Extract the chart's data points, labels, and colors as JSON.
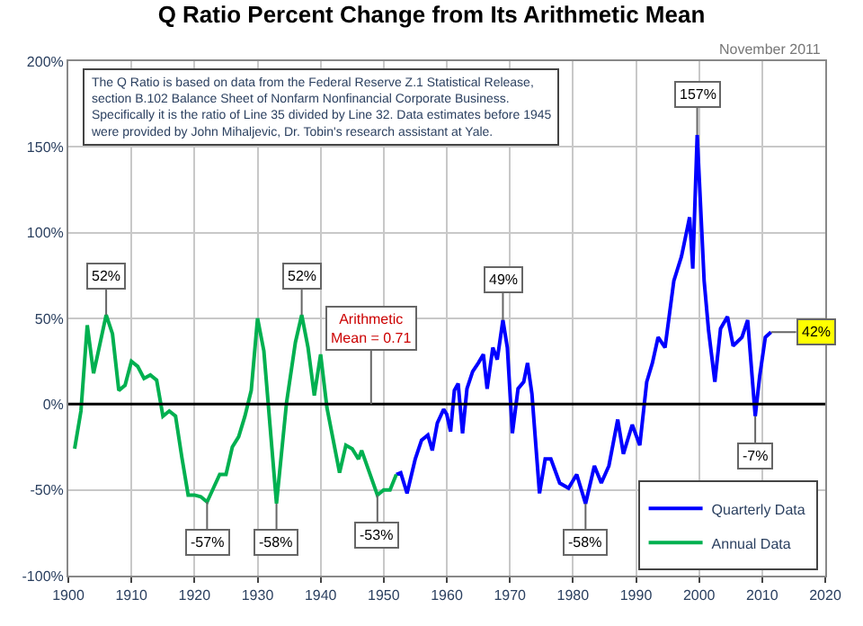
{
  "chart_data": {
    "type": "line",
    "title": "Q Ratio Percent Change from Its Arithmetic Mean",
    "xlim": [
      1900,
      2020
    ],
    "xticks": [
      1900,
      1910,
      1920,
      1930,
      1940,
      1950,
      1960,
      1970,
      1980,
      1990,
      2000,
      2010,
      2020
    ],
    "ylim": [
      -100,
      200
    ],
    "yticks": [
      {
        "value": -100,
        "label": "-100%"
      },
      {
        "value": -50,
        "label": "-50%"
      },
      {
        "value": 0,
        "label": "0%"
      },
      {
        "value": 50,
        "label": "50%"
      },
      {
        "value": 100,
        "label": "100%"
      },
      {
        "value": 150,
        "label": "150%"
      },
      {
        "value": 200,
        "label": "200%"
      }
    ],
    "grid": true,
    "legend": "bottom right",
    "marker": "none",
    "line_style": "solid",
    "series": [
      {
        "name": "Quarterly Data",
        "color": "#0000ff",
        "x": [
          1952,
          1952.7,
          1953.7,
          1955,
          1956,
          1957,
          1957.7,
          1958.5,
          1959.5,
          1960,
          1960.6,
          1961.2,
          1961.8,
          1962.5,
          1963.2,
          1964.1,
          1965,
          1965.8,
          1966.4,
          1967.3,
          1968,
          1968.9,
          1969.6,
          1970.4,
          1971.3,
          1972.2,
          1972.8,
          1973.5,
          1974.7,
          1975.6,
          1976.5,
          1977.9,
          1979.3,
          1980.6,
          1982,
          1983.4,
          1984.5,
          1985.7,
          1987.1,
          1988,
          1989.4,
          1990.6,
          1991.7,
          1992.6,
          1993.5,
          1994.6,
          1996,
          1997.2,
          1998.5,
          1999,
          1999.7,
          2000.8,
          2001.5,
          2002.5,
          2003.4,
          2004.5,
          2005.4,
          2006.8,
          2007.7,
          2008.9,
          2009.6,
          2010.5,
          2011.4
        ],
        "values": [
          -41,
          -40,
          -52,
          -32,
          -21,
          -18,
          -27,
          -11,
          -3,
          -6,
          -16,
          8,
          12,
          -17,
          9,
          19,
          24,
          29,
          9,
          33,
          26,
          49,
          33,
          -17,
          9,
          13,
          24,
          6,
          -52,
          -32,
          -32,
          -46,
          -49,
          -41,
          -58,
          -36,
          -46,
          -36,
          -9,
          -29,
          -12,
          -24,
          13,
          24,
          39,
          33,
          72,
          86,
          109,
          79,
          157,
          72,
          43,
          13,
          44,
          51,
          34,
          39,
          49,
          -7,
          16,
          39,
          42
        ]
      },
      {
        "name": "Annual Data",
        "color": "#00b050",
        "x": [
          1901,
          1902,
          1903,
          1904,
          1904.6,
          1906,
          1907,
          1908,
          1909,
          1910,
          1911,
          1912,
          1913,
          1914,
          1915,
          1916,
          1917,
          1918,
          1919,
          1920,
          1921,
          1922,
          1923,
          1924,
          1925,
          1926,
          1927,
          1928,
          1929,
          1930,
          1931,
          1933,
          1934.6,
          1936,
          1937,
          1938,
          1939,
          1940,
          1941,
          1943,
          1944,
          1945,
          1946,
          1946.5,
          1949,
          1950,
          1951,
          1952
        ],
        "values": [
          -26,
          -4,
          46,
          18,
          28,
          52,
          41,
          8,
          11,
          25,
          22,
          15,
          17,
          14,
          -7,
          -4,
          -7,
          -31,
          -53,
          -53,
          -54,
          -57,
          -49,
          -41,
          -41,
          -25,
          -19,
          -7,
          8,
          50,
          31,
          -58,
          1,
          36,
          52,
          33,
          5,
          29,
          -2,
          -40,
          -24,
          -26,
          -32,
          -27,
          -53,
          -50,
          -50,
          -41
        ]
      }
    ],
    "ref_lines": [
      {
        "axis": "y",
        "value": 0,
        "color": "#000000"
      }
    ],
    "annotations": [
      "The Q Ratio is based on data from the Federal Reserve Z.1 Statistical Release,\nsection B.102 Balance Sheet of Nonfarm Nonfinancial Corporate Business.\nSpecifically it is the ratio of Line 35 divided by Line 32. Data estimates before 1945\nwere provided by John Mihaljevic, Dr. Tobin's research assistant at Yale.",
      "November 2011",
      {
        "text": "Arithmetic\nMean = 0.71",
        "x": 1948,
        "y": 0
      },
      {
        "text": "52%",
        "x": 1906,
        "y": 52
      },
      {
        "text": "-57%",
        "x": 1922,
        "y": -57
      },
      {
        "text": "-58%",
        "x": 1933,
        "y": -58
      },
      {
        "text": "52%",
        "x": 1937,
        "y": 52
      },
      {
        "text": "-53%",
        "x": 1949,
        "y": -53
      },
      {
        "text": "49%",
        "x": 1968.9,
        "y": 49
      },
      {
        "text": "-58%",
        "x": 1982,
        "y": -58
      },
      {
        "text": "157%",
        "x": 1999.7,
        "y": 157
      },
      {
        "text": "-7%",
        "x": 2008.9,
        "y": -7
      },
      {
        "text": "42%",
        "x": 2011.4,
        "y": 42
      }
    ]
  }
}
